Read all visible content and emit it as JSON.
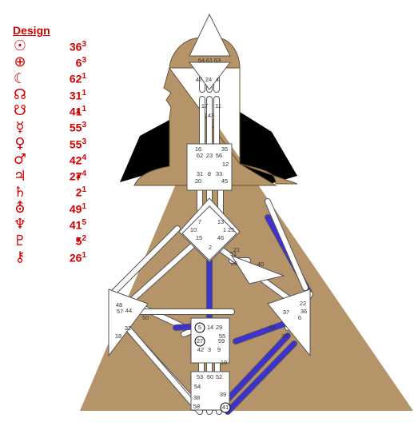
{
  "design": {
    "title": "Design",
    "planets": [
      {
        "icon": "sun-icon",
        "symbol": "☉",
        "gate": "36",
        "line": "3",
        "mark": ""
      },
      {
        "icon": "earth-icon",
        "symbol": "⊕",
        "gate": "6",
        "line": "3",
        "mark": ""
      },
      {
        "icon": "moon-icon",
        "symbol": "☾",
        "gate": "62",
        "line": "1",
        "mark": ""
      },
      {
        "icon": "north-node-icon",
        "symbol": "☊",
        "gate": "31",
        "line": "1",
        "mark": ""
      },
      {
        "icon": "south-node-icon",
        "symbol": "☋",
        "gate": "41",
        "line": "1",
        "mark": "▲"
      },
      {
        "icon": "mercury-icon",
        "symbol": "☿",
        "gate": "55",
        "line": "3",
        "mark": ""
      },
      {
        "icon": "venus-icon",
        "symbol": "♀",
        "gate": "55",
        "line": "3",
        "mark": ""
      },
      {
        "icon": "mars-icon",
        "symbol": "♂",
        "gate": "42",
        "line": "4",
        "mark": ""
      },
      {
        "icon": "jupiter-icon",
        "symbol": "♃",
        "gate": "27",
        "line": "4",
        "mark": "▲"
      },
      {
        "icon": "saturn-icon",
        "symbol": "♄",
        "gate": "2",
        "line": "1",
        "mark": ""
      },
      {
        "icon": "uranus-icon",
        "symbol": "⛢",
        "gate": "49",
        "line": "1",
        "mark": ""
      },
      {
        "icon": "neptune-icon",
        "symbol": "♆",
        "gate": "41",
        "line": "5",
        "mark": ""
      },
      {
        "icon": "pluto-icon",
        "symbol": "♇",
        "gate": "5",
        "line": "2",
        "mark": "▼"
      },
      {
        "icon": "chiron-icon",
        "symbol": "⚷",
        "gate": "26",
        "line": "1",
        "mark": ""
      }
    ]
  },
  "bodygraph": {
    "colors": {
      "background": "#b5946a",
      "shadow": "#000000",
      "channel": "#ffffff",
      "design_activation": "#3e32cf",
      "outline": "#555555",
      "gate_text": "#333333"
    },
    "gates": [
      "64",
      "61",
      "63",
      "47",
      "24",
      "4",
      "17",
      "11",
      "43",
      "16",
      "35",
      "62",
      "23",
      "56",
      "12",
      "31",
      "8",
      "33",
      "20",
      "45",
      "7",
      "13",
      "10",
      "1",
      "25",
      "15",
      "46",
      "2",
      "51",
      "21",
      "26",
      "40",
      "48",
      "57",
      "44",
      "50",
      "37",
      "22",
      "6",
      "36",
      "32",
      "18",
      "5",
      "14",
      "29",
      "27",
      "59",
      "55",
      "42",
      "3",
      "9",
      "49",
      "30",
      "19",
      "53",
      "60",
      "52",
      "54",
      "39",
      "38",
      "58",
      "41"
    ]
  }
}
